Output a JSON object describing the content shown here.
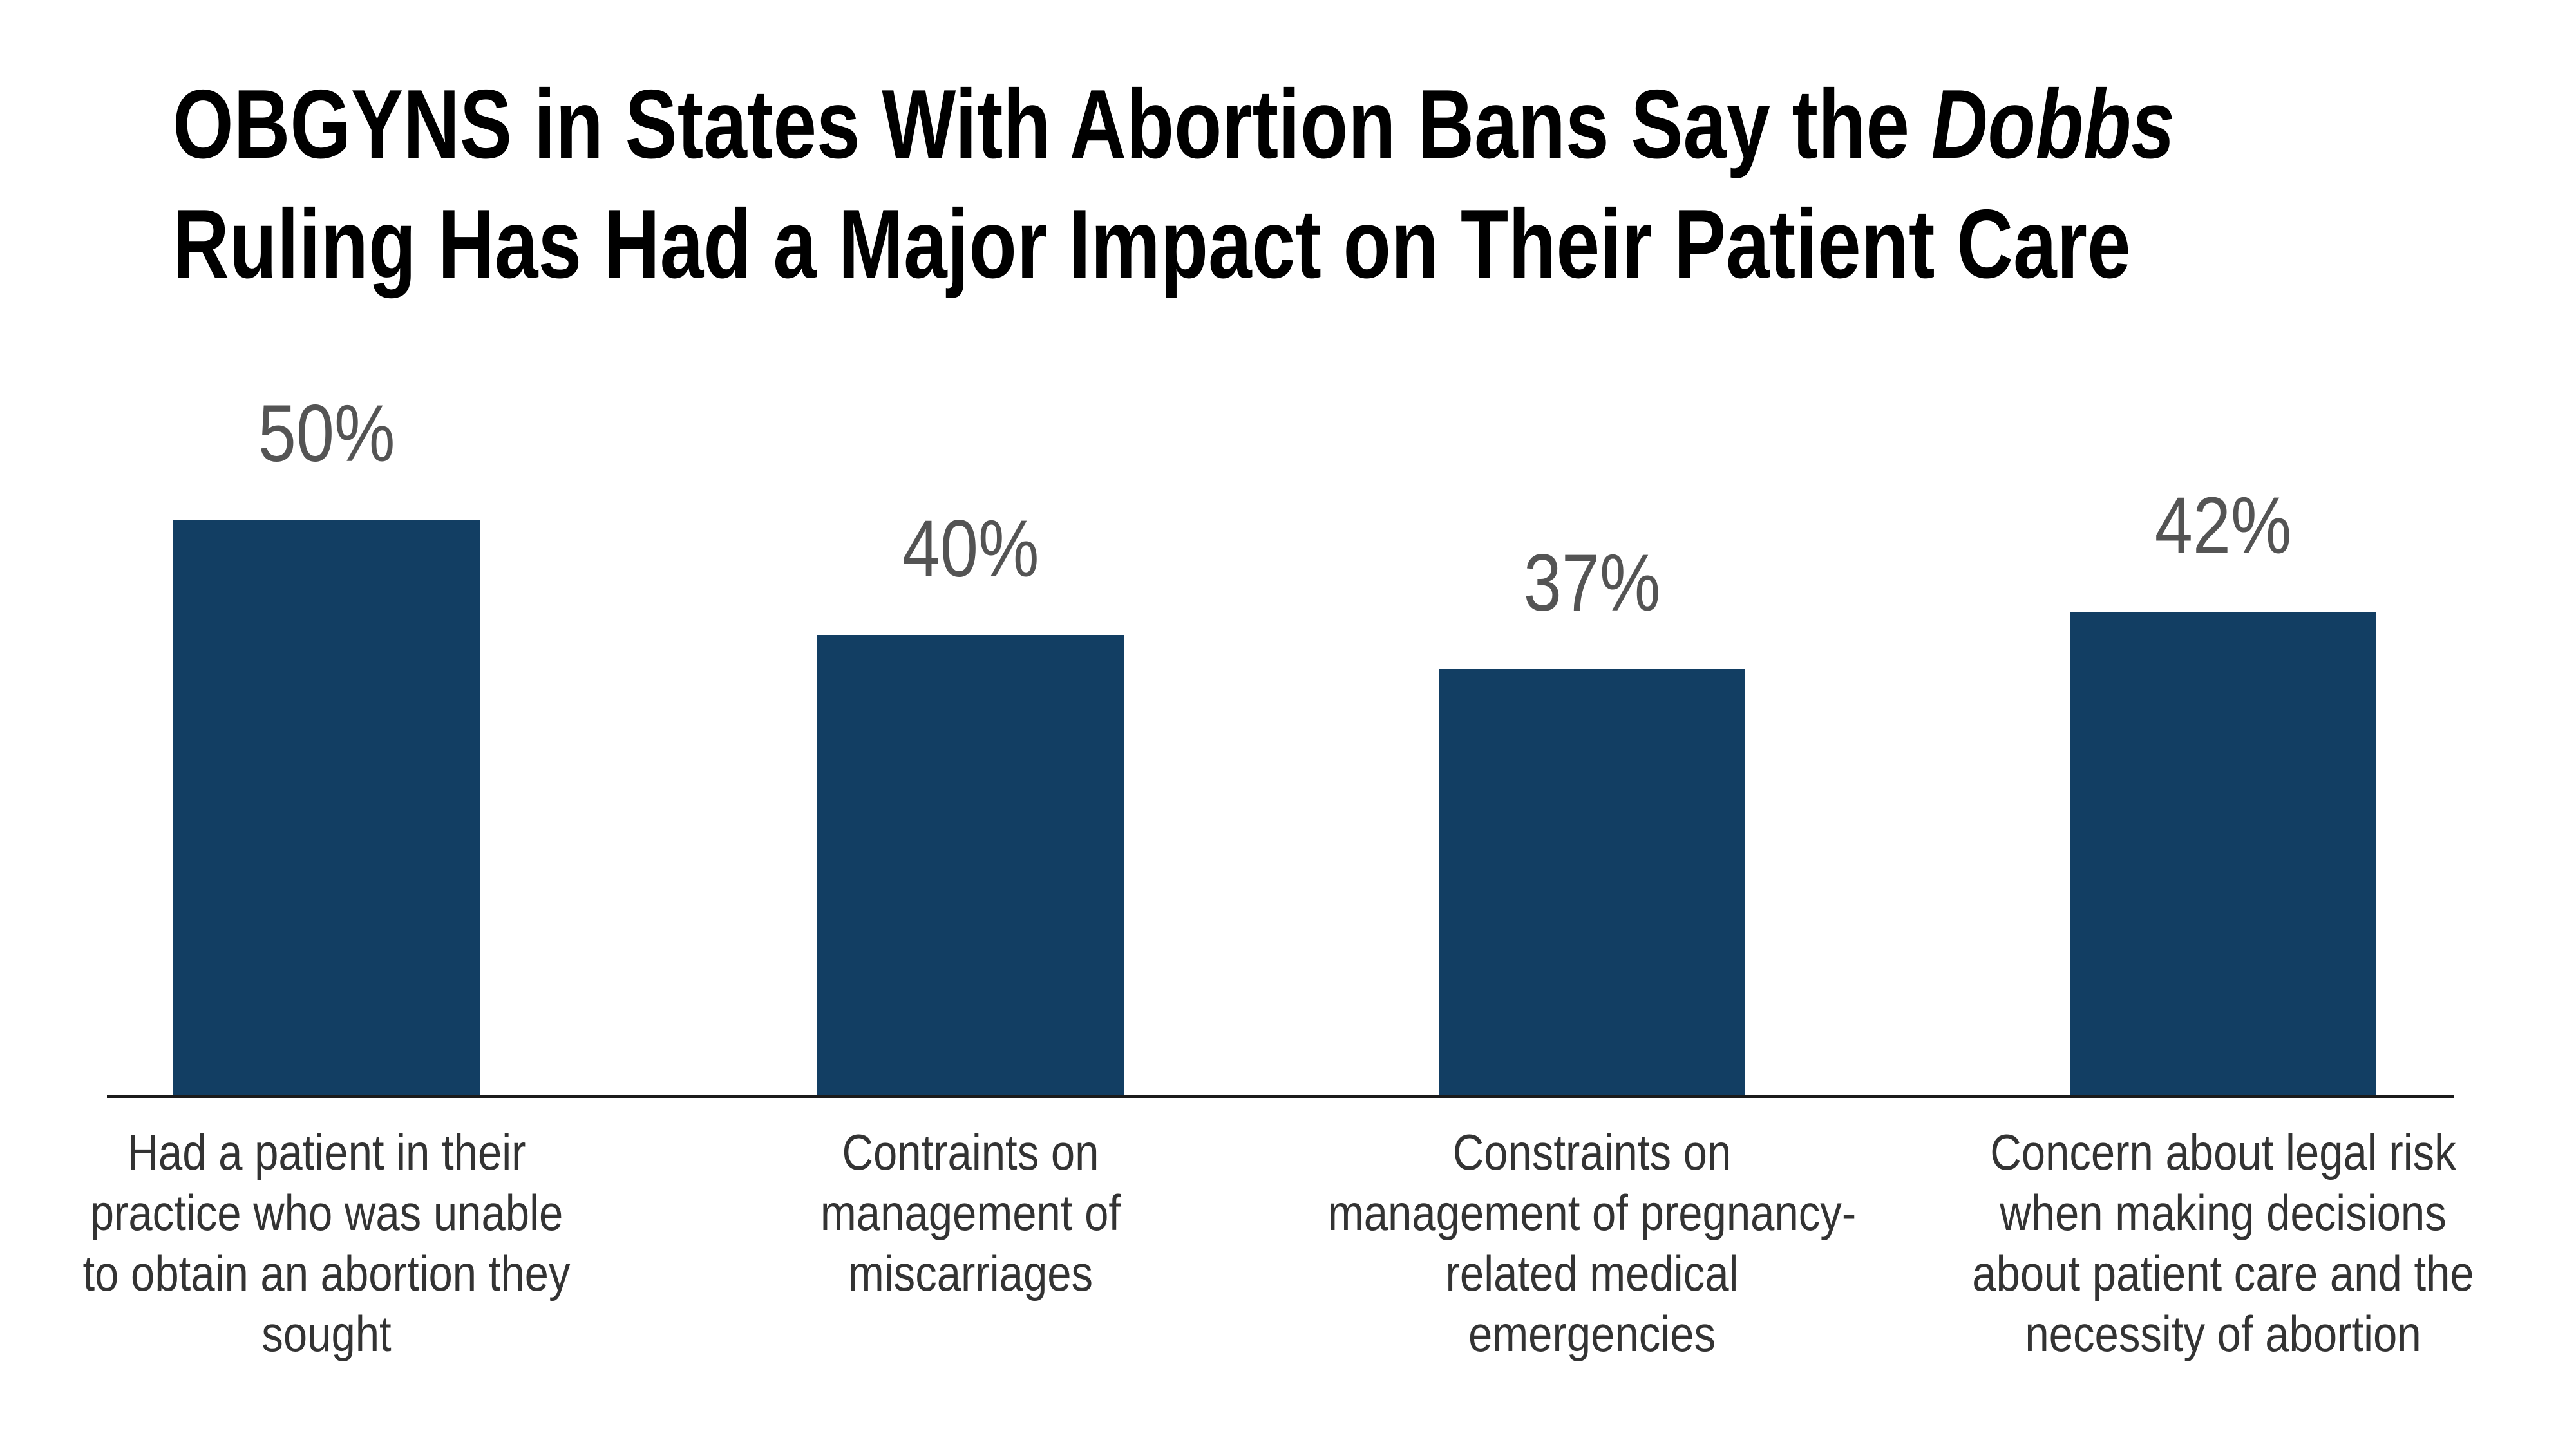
{
  "title": {
    "line1_regular": "OBGYNS in States With Abortion Bans Say the ",
    "line1_italic": "Dobbs",
    "line2": "Ruling Has Had a Major Impact on Their Patient Care"
  },
  "chart_data": {
    "type": "bar",
    "title": "OBGYNS in States With Abortion Bans Say the Dobbs Ruling Has Had a Major Impact on Their Patient Care",
    "title_italic_segment": "Dobbs",
    "categories": [
      "Had a patient in their\npractice who was unable\nto obtain an abortion they\nsought",
      "Contraints on\nmanagement of\nmiscarriages",
      "Constraints on\nmanagement of pregnancy-\nrelated medical\nemergencies",
      "Concern about legal risk\nwhen making decisions\nabout patient care and the\nnecessity of abortion"
    ],
    "values": [
      50,
      40,
      37,
      42
    ],
    "value_labels": [
      "50%",
      "40%",
      "37%",
      "42%"
    ],
    "xlabel": "",
    "ylabel": "",
    "ylim": [
      0,
      50
    ],
    "grid": false,
    "legend": false,
    "bar_color": "#123e63",
    "value_label_color": "#545454",
    "category_label_color": "#333333",
    "axis_line_color": "#1b1b1b",
    "background_color": "#ffffff",
    "title_color": "#000000"
  }
}
